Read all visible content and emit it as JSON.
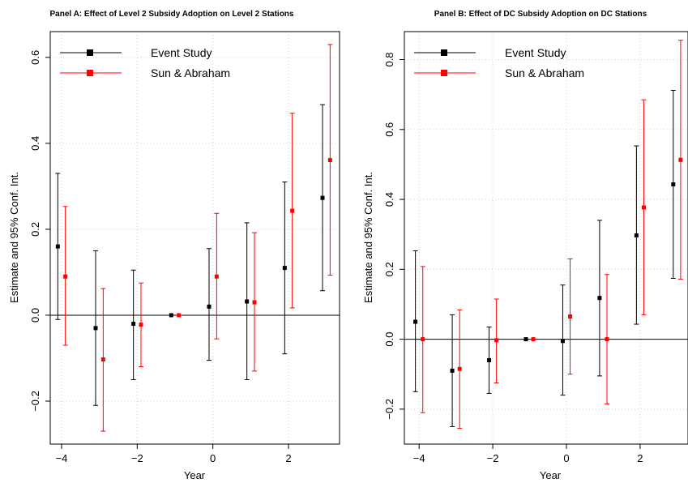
{
  "chart_data": [
    {
      "type": "scatter",
      "title": "Panel A: Effect of Level 2 Subsidy Adoption on Level 2 Stations",
      "xlabel": "Year",
      "ylabel": "Estimate and 95% Conf. Int.",
      "xlim": [
        -4.3,
        3.35
      ],
      "ylim": [
        -0.3,
        0.66
      ],
      "x_ticks": [
        -4,
        -2,
        0,
        2
      ],
      "y_ticks": [
        -0.2,
        0.0,
        0.2,
        0.4,
        0.6
      ],
      "x_tick_labels": [
        "−4",
        "−2",
        "0",
        "2"
      ],
      "y_tick_labels": [
        "−0.2",
        "0.0",
        "0.2",
        "0.4",
        "0.6"
      ],
      "grid": true,
      "hline": 0,
      "legend_position": "top-left",
      "series": [
        {
          "name": "Event Study",
          "color": "#000000",
          "points": [
            {
              "x": -4.1,
              "y": 0.16,
              "lo": -0.01,
              "hi": 0.33
            },
            {
              "x": -3.1,
              "y": -0.03,
              "lo": -0.21,
              "hi": 0.15
            },
            {
              "x": -2.1,
              "y": -0.02,
              "lo": -0.15,
              "hi": 0.105
            },
            {
              "x": -1.1,
              "y": 0.0,
              "lo": 0.0,
              "hi": 0.0
            },
            {
              "x": -0.1,
              "y": 0.02,
              "lo": -0.105,
              "hi": 0.155
            },
            {
              "x": 0.9,
              "y": 0.032,
              "lo": -0.15,
              "hi": 0.215
            },
            {
              "x": 1.9,
              "y": 0.11,
              "lo": -0.09,
              "hi": 0.31
            },
            {
              "x": 2.9,
              "y": 0.273,
              "lo": 0.057,
              "hi": 0.49
            }
          ]
        },
        {
          "name": "Sun & Abraham",
          "color": "#ff0000",
          "points": [
            {
              "x": -3.9,
              "y": 0.09,
              "lo": -0.07,
              "hi": 0.253
            },
            {
              "x": -2.9,
              "y": -0.103,
              "lo": -0.27,
              "hi": 0.062
            },
            {
              "x": -1.9,
              "y": -0.022,
              "lo": -0.12,
              "hi": 0.075
            },
            {
              "x": -0.9,
              "y": 0.0,
              "lo": 0.0,
              "hi": 0.0
            },
            {
              "x": 0.1,
              "y": 0.09,
              "lo": -0.055,
              "hi": 0.237
            },
            {
              "x": 1.1,
              "y": 0.03,
              "lo": -0.13,
              "hi": 0.192
            },
            {
              "x": 2.1,
              "y": 0.243,
              "lo": 0.017,
              "hi": 0.47
            },
            {
              "x": 3.1,
              "y": 0.361,
              "lo": 0.093,
              "hi": 0.63
            }
          ]
        }
      ]
    },
    {
      "type": "scatter",
      "title": "Panel B: Effect of DC Subsidy Adoption on DC Stations",
      "xlabel": "Year",
      "ylabel": "Estimate and 95% Conf. Int.",
      "xlim": [
        -4.4,
        3.3
      ],
      "ylim": [
        -0.3,
        0.88
      ],
      "x_ticks": [
        -4,
        -2,
        0,
        2
      ],
      "y_ticks": [
        -0.2,
        0.0,
        0.2,
        0.4,
        0.6,
        0.8
      ],
      "x_tick_labels": [
        "−4",
        "−2",
        "0",
        "2"
      ],
      "y_tick_labels": [
        "−0.2",
        "0.0",
        "0.2",
        "0.4",
        "0.6",
        "0.8"
      ],
      "grid": true,
      "hline": 0,
      "legend_position": "top-left",
      "series": [
        {
          "name": "Event Study",
          "color": "#000000",
          "points": [
            {
              "x": -4.1,
              "y": 0.05,
              "lo": -0.15,
              "hi": 0.253
            },
            {
              "x": -3.1,
              "y": -0.09,
              "lo": -0.25,
              "hi": 0.07
            },
            {
              "x": -2.1,
              "y": -0.06,
              "lo": -0.155,
              "hi": 0.035
            },
            {
              "x": -1.1,
              "y": 0.0,
              "lo": 0.0,
              "hi": 0.0
            },
            {
              "x": -0.1,
              "y": -0.005,
              "lo": -0.16,
              "hi": 0.155
            },
            {
              "x": 0.9,
              "y": 0.118,
              "lo": -0.105,
              "hi": 0.34
            },
            {
              "x": 1.9,
              "y": 0.297,
              "lo": 0.043,
              "hi": 0.553
            },
            {
              "x": 2.9,
              "y": 0.443,
              "lo": 0.174,
              "hi": 0.712
            }
          ]
        },
        {
          "name": "Sun & Abraham",
          "color": "#ff0000",
          "points": [
            {
              "x": -3.9,
              "y": 0.0,
              "lo": -0.21,
              "hi": 0.208
            },
            {
              "x": -2.9,
              "y": -0.085,
              "lo": -0.255,
              "hi": 0.084
            },
            {
              "x": -1.9,
              "y": -0.003,
              "lo": -0.125,
              "hi": 0.115
            },
            {
              "x": -0.9,
              "y": 0.0,
              "lo": 0.0,
              "hi": 0.0
            },
            {
              "x": 0.1,
              "y": 0.065,
              "lo": -0.1,
              "hi": 0.23
            },
            {
              "x": 1.1,
              "y": 0.0,
              "lo": -0.185,
              "hi": 0.185
            },
            {
              "x": 2.1,
              "y": 0.377,
              "lo": 0.07,
              "hi": 0.685
            },
            {
              "x": 3.1,
              "y": 0.513,
              "lo": 0.172,
              "hi": 0.855
            }
          ]
        }
      ]
    }
  ]
}
